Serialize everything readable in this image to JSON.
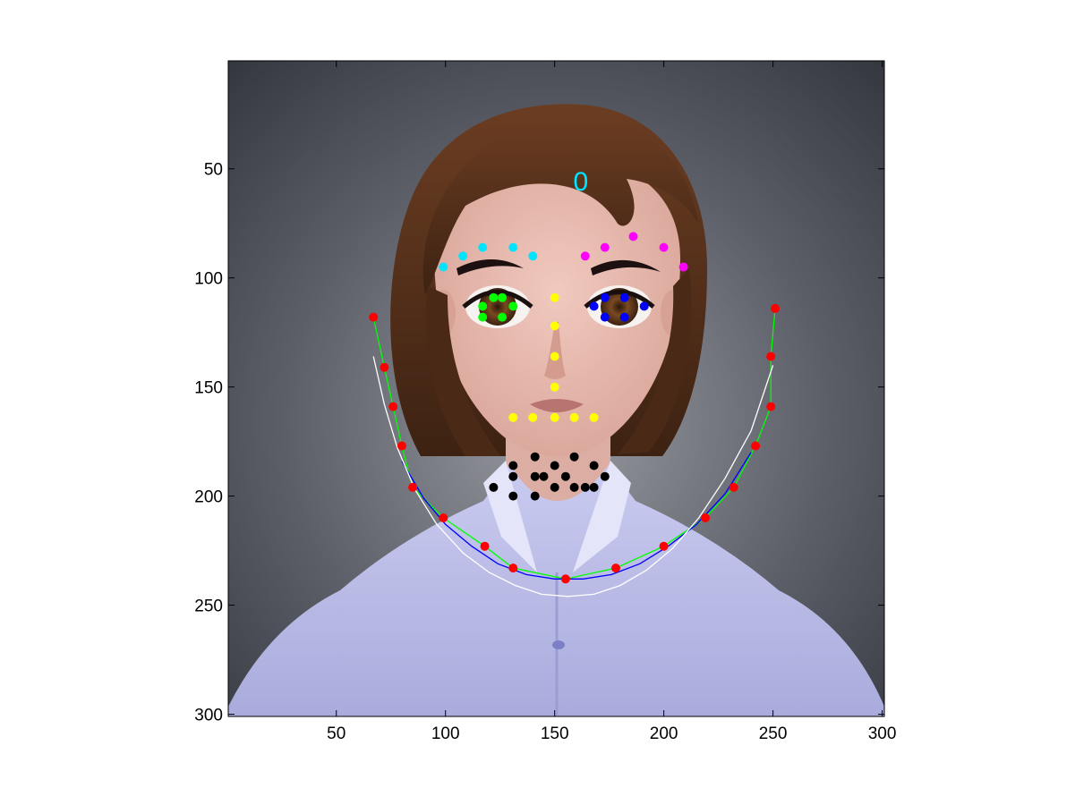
{
  "chart_data": {
    "type": "scatter",
    "title": "",
    "xlabel": "",
    "ylabel": "",
    "xlim": [
      0.5,
      301
    ],
    "ylim": [
      0.5,
      301
    ],
    "y_reversed": true,
    "grid": false,
    "background": "image",
    "xticks": [
      50,
      100,
      150,
      200,
      250,
      300
    ],
    "yticks": [
      50,
      100,
      150,
      200,
      250,
      300
    ],
    "xtick_labels": [
      "50",
      "100",
      "150",
      "200",
      "250",
      "300"
    ],
    "ytick_labels": [
      "50",
      "100",
      "150",
      "200",
      "250",
      "300"
    ],
    "annotations": [
      {
        "text": "0",
        "x": 162,
        "y": 60,
        "color": "#00e5ff"
      }
    ],
    "series": [
      {
        "color": "#ff0000",
        "marker": "dot",
        "points": [
          [
            67,
            118
          ],
          [
            72,
            141
          ],
          [
            76,
            159
          ],
          [
            80,
            177
          ],
          [
            85,
            196
          ],
          [
            99,
            210
          ],
          [
            118,
            223
          ],
          [
            131,
            233
          ],
          [
            155,
            238
          ],
          [
            178,
            233
          ],
          [
            200,
            223
          ],
          [
            219,
            210
          ],
          [
            232,
            196
          ],
          [
            242,
            177
          ],
          [
            249,
            159
          ],
          [
            249,
            136
          ],
          [
            251,
            114
          ]
        ]
      },
      {
        "color": "#00e5ff",
        "marker": "dot",
        "points": [
          [
            99,
            95
          ],
          [
            108,
            90
          ],
          [
            117,
            86
          ],
          [
            131,
            86
          ],
          [
            140,
            90
          ]
        ]
      },
      {
        "color": "#ff00ff",
        "marker": "dot",
        "points": [
          [
            164,
            90
          ],
          [
            173,
            86
          ],
          [
            186,
            81
          ],
          [
            200,
            86
          ],
          [
            209,
            95
          ]
        ]
      },
      {
        "color": "#00ff00",
        "marker": "dot",
        "points": [
          [
            117,
            113
          ],
          [
            117,
            118
          ],
          [
            122,
            109
          ],
          [
            126,
            109
          ],
          [
            126,
            118
          ],
          [
            131,
            113
          ]
        ]
      },
      {
        "color": "#0000ff",
        "marker": "dot",
        "points": [
          [
            168,
            113
          ],
          [
            173,
            109
          ],
          [
            173,
            118
          ],
          [
            182,
            109
          ],
          [
            182,
            118
          ],
          [
            191,
            113
          ]
        ]
      },
      {
        "color": "#ffff00",
        "marker": "dot",
        "points": [
          [
            150,
            109
          ],
          [
            150,
            122
          ],
          [
            150,
            136
          ],
          [
            150,
            150
          ],
          [
            131,
            164
          ],
          [
            140,
            164
          ],
          [
            150,
            164
          ],
          [
            159,
            164
          ],
          [
            168,
            164
          ]
        ]
      },
      {
        "color": "#000000",
        "marker": "dot",
        "points": [
          [
            131,
            186
          ],
          [
            141,
            182
          ],
          [
            150,
            186
          ],
          [
            159,
            182
          ],
          [
            168,
            186
          ],
          [
            122,
            196
          ],
          [
            131,
            191
          ],
          [
            141,
            191
          ],
          [
            145,
            191
          ],
          [
            155,
            191
          ],
          [
            173,
            191
          ],
          [
            131,
            200
          ],
          [
            141,
            200
          ],
          [
            150,
            196
          ],
          [
            159,
            196
          ],
          [
            164,
            196
          ],
          [
            168,
            196
          ]
        ]
      }
    ],
    "curves": [
      {
        "color": "#00ff00",
        "points": [
          [
            67,
            118
          ],
          [
            72,
            141
          ],
          [
            76,
            159
          ],
          [
            80,
            177
          ],
          [
            85,
            196
          ],
          [
            99,
            210
          ],
          [
            118,
            223
          ],
          [
            131,
            233
          ],
          [
            155,
            238
          ],
          [
            178,
            233
          ],
          [
            200,
            223
          ],
          [
            219,
            210
          ],
          [
            232,
            196
          ],
          [
            242,
            177
          ],
          [
            249,
            159
          ],
          [
            249,
            136
          ],
          [
            251,
            114
          ]
        ]
      },
      {
        "color": "#0000ff",
        "points": [
          [
            80,
            184
          ],
          [
            90,
            201
          ],
          [
            100,
            213
          ],
          [
            112,
            223
          ],
          [
            124,
            231
          ],
          [
            137,
            236
          ],
          [
            150,
            238
          ],
          [
            163,
            238
          ],
          [
            176,
            236
          ],
          [
            189,
            231
          ],
          [
            202,
            223
          ],
          [
            215,
            213
          ],
          [
            228,
            199
          ],
          [
            240,
            180
          ]
        ]
      },
      {
        "color": "#ffffff",
        "points": [
          [
            67,
            136
          ],
          [
            72,
            158
          ],
          [
            78,
            178
          ],
          [
            86,
            197
          ],
          [
            96,
            213
          ],
          [
            108,
            226
          ],
          [
            120,
            235
          ],
          [
            132,
            241
          ],
          [
            144,
            245
          ],
          [
            156,
            246
          ],
          [
            168,
            245
          ],
          [
            180,
            241
          ],
          [
            192,
            234
          ],
          [
            204,
            224
          ],
          [
            216,
            210
          ],
          [
            228,
            192
          ],
          [
            240,
            170
          ],
          [
            250,
            140
          ]
        ]
      }
    ]
  }
}
